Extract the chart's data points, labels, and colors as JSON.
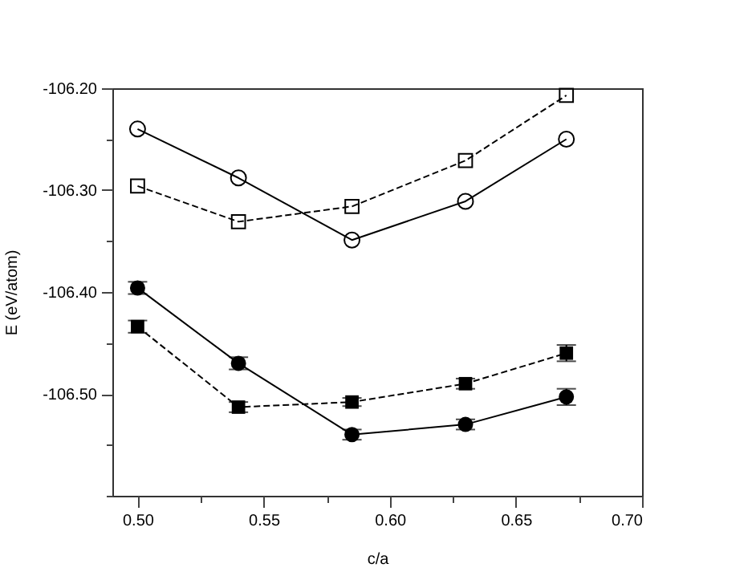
{
  "chart_data": {
    "type": "line",
    "xlabel": "c/a",
    "ylabel": "E (eV/atom)",
    "xlim": [
      0.49,
      0.7
    ],
    "ylim": [
      -106.6,
      -106.2
    ],
    "xticks": [
      {
        "value": 0.5,
        "label": "0.50"
      },
      {
        "value": 0.525,
        "label": null
      },
      {
        "value": 0.55,
        "label": "0.55"
      },
      {
        "value": 0.575,
        "label": null
      },
      {
        "value": 0.6,
        "label": "0.60"
      },
      {
        "value": 0.625,
        "label": null
      },
      {
        "value": 0.65,
        "label": "0.65"
      },
      {
        "value": 0.675,
        "label": null
      },
      {
        "value": 0.7,
        "label": "0.70"
      }
    ],
    "yticks": [
      {
        "value": -106.6,
        "label": null
      },
      {
        "value": -106.55,
        "label": null
      },
      {
        "value": -106.5,
        "label": "-106.50"
      },
      {
        "value": -106.45,
        "label": null
      },
      {
        "value": -106.4,
        "label": "-106.40"
      },
      {
        "value": -106.35,
        "label": null
      },
      {
        "value": -106.3,
        "label": "-106.30"
      },
      {
        "value": -106.25,
        "label": null
      },
      {
        "value": -106.2,
        "label": "-106.20"
      }
    ],
    "x": [
      0.5,
      0.54,
      0.585,
      0.63,
      0.67
    ],
    "grid": false,
    "series": [
      {
        "color": "#000000",
        "marker": "circle",
        "line_style": "solid",
        "values": [
          -106.24,
          -106.288,
          -106.349,
          -106.311,
          -106.25
        ]
      },
      {
        "color": "#000000",
        "marker": "square",
        "line_style": "dashed",
        "values": [
          -106.296,
          -106.331,
          -106.316,
          -106.271,
          -106.207
        ]
      },
      {
        "color": "#000000",
        "marker": "circle",
        "line_style": "solid",
        "values": [
          -106.396,
          -106.47,
          -106.54,
          -106.53,
          -106.503
        ],
        "errors": [
          0.006,
          0.006,
          0.005,
          0.005,
          0.008
        ]
      },
      {
        "color": "#000000",
        "marker": "square",
        "line_style": "dashed",
        "values": [
          -106.434,
          -106.513,
          -106.508,
          -106.49,
          -106.46
        ],
        "errors": [
          0.006,
          0.005,
          0.004,
          0.005,
          0.008
        ]
      }
    ]
  }
}
